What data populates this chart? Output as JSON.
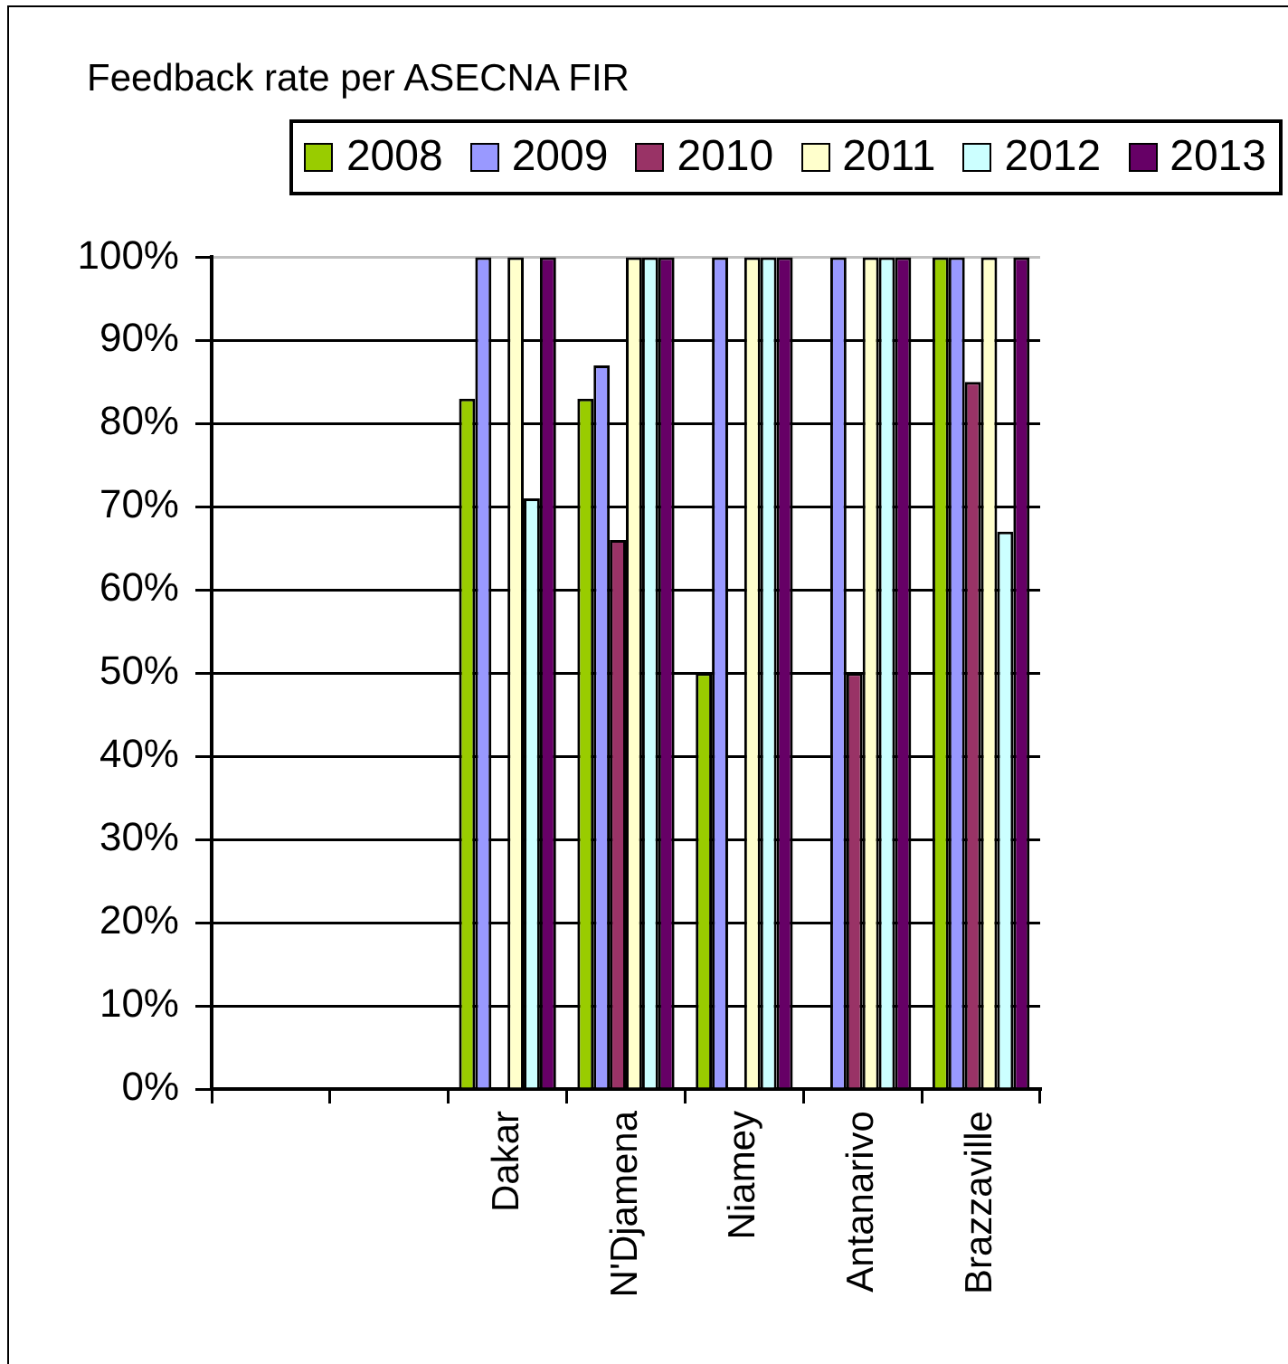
{
  "chart_data": {
    "type": "bar",
    "title": "Feedback rate per ASECNA FIR",
    "categories": [
      null,
      null,
      "Dakar",
      "N'Djamena",
      "Niamey",
      "Antanarivo",
      "Brazzaville"
    ],
    "series": [
      {
        "name": "2008",
        "color": "#99cc00",
        "values": [
          null,
          null,
          83,
          83,
          50,
          null,
          100
        ]
      },
      {
        "name": "2009",
        "color": "#9999ff",
        "values": [
          null,
          null,
          100,
          87,
          100,
          100,
          100
        ]
      },
      {
        "name": "2010",
        "color": "#993366",
        "values": [
          null,
          null,
          null,
          66,
          null,
          50,
          85
        ]
      },
      {
        "name": "2011",
        "color": "#ffffcc",
        "values": [
          null,
          null,
          100,
          100,
          100,
          100,
          100
        ]
      },
      {
        "name": "2012",
        "color": "#ccffff",
        "values": [
          null,
          null,
          71,
          100,
          100,
          100,
          67
        ]
      },
      {
        "name": "2013",
        "color": "#660066",
        "values": [
          null,
          null,
          100,
          100,
          100,
          100,
          100
        ]
      }
    ],
    "ylim": [
      0,
      100
    ],
    "yticks": [
      {
        "value": 0,
        "label": "0%"
      },
      {
        "value": 10,
        "label": "10%"
      },
      {
        "value": 20,
        "label": "20%"
      },
      {
        "value": 30,
        "label": "30%"
      },
      {
        "value": 40,
        "label": "40%"
      },
      {
        "value": 50,
        "label": "50%"
      },
      {
        "value": 60,
        "label": "60%"
      },
      {
        "value": 70,
        "label": "70%"
      },
      {
        "value": 80,
        "label": "80%"
      },
      {
        "value": 90,
        "label": "90%"
      },
      {
        "value": 100,
        "label": "100%"
      }
    ],
    "grid": "y",
    "legend": "top right"
  }
}
